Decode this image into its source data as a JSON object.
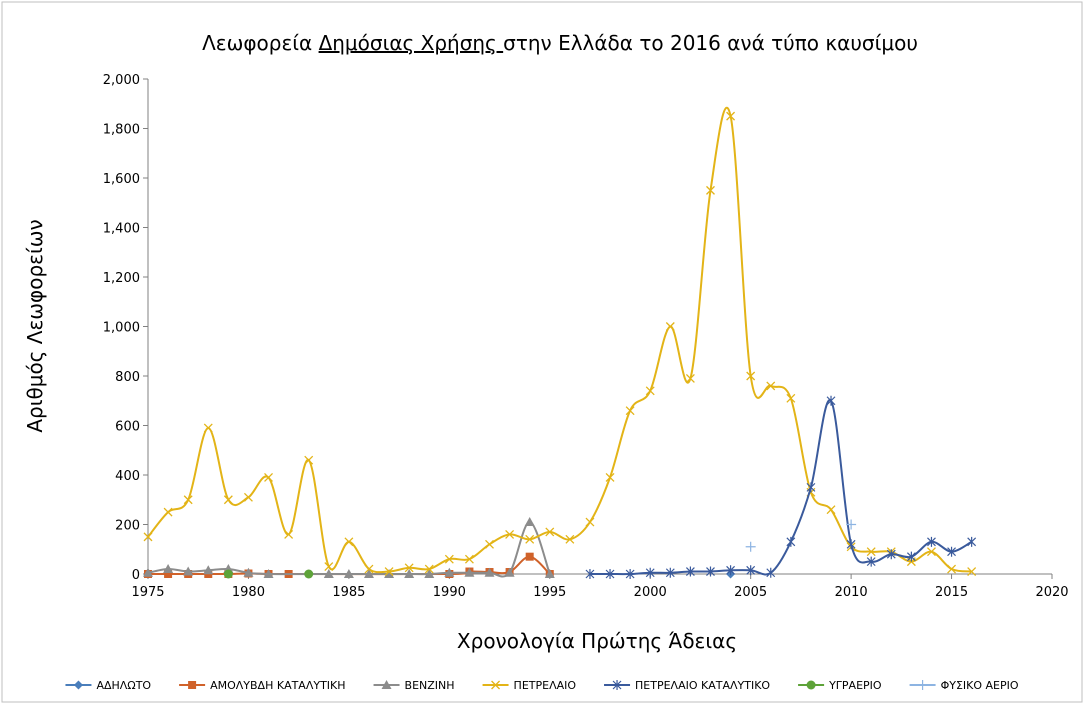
{
  "chart_data": {
    "type": "line",
    "title_prefix": "Λεωφορεία ",
    "title_underlined": "Δημόσιας Χρήσης ",
    "title_suffix": "στην Ελλάδα το 2016 ανά τύπο καυσίμου",
    "xlabel": "Χρονολογία Πρώτης Άδειας",
    "ylabel": "Αριθμός Λεωφορείων",
    "xlim": [
      1975,
      2020
    ],
    "ylim": [
      0,
      2000
    ],
    "xticks": [
      1975,
      1980,
      1985,
      1990,
      1995,
      2000,
      2005,
      2010,
      2015,
      2020
    ],
    "yticks": [
      0,
      200,
      400,
      600,
      800,
      1000,
      1200,
      1400,
      1600,
      1800,
      2000
    ],
    "ytick_labels": [
      "0",
      "200",
      "400",
      "600",
      "800",
      "1,000",
      "1,200",
      "1,400",
      "1,600",
      "1,800",
      "2,000"
    ],
    "grid": false,
    "legend_position": "bottom",
    "series": [
      {
        "name": "ΑΔΗΛΩΤΟ",
        "color": "#4a7ebb",
        "marker": "diamond",
        "points": [
          [
            1975,
            0
          ],
          [
            2004,
            0
          ]
        ],
        "line": false
      },
      {
        "name": "ΑΜΟΛΥΒΔΗ ΚΑΤΑΛΥΤΙΚΗ",
        "color": "#d0622a",
        "marker": "square",
        "points": [
          [
            1975,
            0
          ],
          [
            1976,
            0
          ],
          [
            1977,
            0
          ],
          [
            1978,
            0
          ],
          [
            1979,
            0
          ],
          [
            1980,
            2
          ],
          [
            1981,
            0
          ],
          [
            1982,
            0
          ],
          [
            1990,
            0
          ],
          [
            1991,
            10
          ],
          [
            1992,
            8
          ],
          [
            1993,
            8
          ],
          [
            1994,
            70
          ],
          [
            1995,
            0
          ]
        ],
        "line": true
      },
      {
        "name": "ΒΕΝΖΙΝΗ",
        "color": "#8c8c8c",
        "marker": "triangle",
        "points": [
          [
            1975,
            5
          ],
          [
            1976,
            20
          ],
          [
            1977,
            10
          ],
          [
            1978,
            15
          ],
          [
            1979,
            20
          ],
          [
            1980,
            5
          ],
          [
            1981,
            0
          ],
          [
            1984,
            0
          ],
          [
            1985,
            0
          ],
          [
            1986,
            0
          ],
          [
            1987,
            0
          ],
          [
            1988,
            0
          ],
          [
            1989,
            0
          ],
          [
            1990,
            5
          ],
          [
            1991,
            5
          ],
          [
            1992,
            5
          ],
          [
            1993,
            5
          ],
          [
            1994,
            210
          ],
          [
            1995,
            0
          ]
        ],
        "line": true
      },
      {
        "name": "ΠΕΤΡΕΛΑΙΟ",
        "color": "#e3b417",
        "marker": "x",
        "points": [
          [
            1975,
            150
          ],
          [
            1976,
            250
          ],
          [
            1977,
            300
          ],
          [
            1978,
            590
          ],
          [
            1979,
            300
          ],
          [
            1980,
            310
          ],
          [
            1981,
            390
          ],
          [
            1982,
            160
          ],
          [
            1983,
            460
          ],
          [
            1984,
            30
          ],
          [
            1985,
            130
          ],
          [
            1986,
            20
          ],
          [
            1987,
            10
          ],
          [
            1988,
            25
          ],
          [
            1989,
            20
          ],
          [
            1990,
            60
          ],
          [
            1991,
            60
          ],
          [
            1992,
            120
          ],
          [
            1993,
            160
          ],
          [
            1994,
            140
          ],
          [
            1995,
            170
          ],
          [
            1996,
            140
          ],
          [
            1997,
            210
          ],
          [
            1998,
            390
          ],
          [
            1999,
            660
          ],
          [
            2000,
            740
          ],
          [
            2001,
            1000
          ],
          [
            2002,
            790
          ],
          [
            2003,
            1550
          ],
          [
            2004,
            1850
          ],
          [
            2005,
            800
          ],
          [
            2006,
            760
          ],
          [
            2007,
            710
          ],
          [
            2008,
            330
          ],
          [
            2009,
            260
          ],
          [
            2010,
            110
          ],
          [
            2011,
            90
          ],
          [
            2012,
            90
          ],
          [
            2013,
            50
          ],
          [
            2014,
            90
          ],
          [
            2015,
            20
          ],
          [
            2016,
            10
          ]
        ],
        "line": true
      },
      {
        "name": "ΠΕΤΡΕΛΑΙΟ ΚΑΤΑΛΥΤΙΚΟ",
        "color": "#3a5a9c",
        "marker": "star",
        "points": [
          [
            1997,
            0
          ],
          [
            1998,
            0
          ],
          [
            1999,
            0
          ],
          [
            2000,
            5
          ],
          [
            2001,
            5
          ],
          [
            2002,
            10
          ],
          [
            2003,
            10
          ],
          [
            2004,
            15
          ],
          [
            2005,
            15
          ],
          [
            2006,
            5
          ],
          [
            2007,
            130
          ],
          [
            2008,
            350
          ],
          [
            2009,
            700
          ],
          [
            2010,
            120
          ],
          [
            2011,
            50
          ],
          [
            2012,
            80
          ],
          [
            2013,
            70
          ],
          [
            2014,
            130
          ],
          [
            2015,
            90
          ],
          [
            2016,
            130
          ]
        ],
        "line": true
      },
      {
        "name": "ΥΓΡΑΕΡΙΟ",
        "color": "#5ea339",
        "marker": "circle",
        "points": [
          [
            1979,
            0
          ],
          [
            1983,
            0
          ]
        ],
        "line": false
      },
      {
        "name": "ΦΥΣΙΚΟ ΑΕΡΙΟ",
        "color": "#8db4e2",
        "marker": "plus",
        "points": [
          [
            2005,
            110
          ],
          [
            2010,
            200
          ]
        ],
        "line": false
      }
    ]
  }
}
